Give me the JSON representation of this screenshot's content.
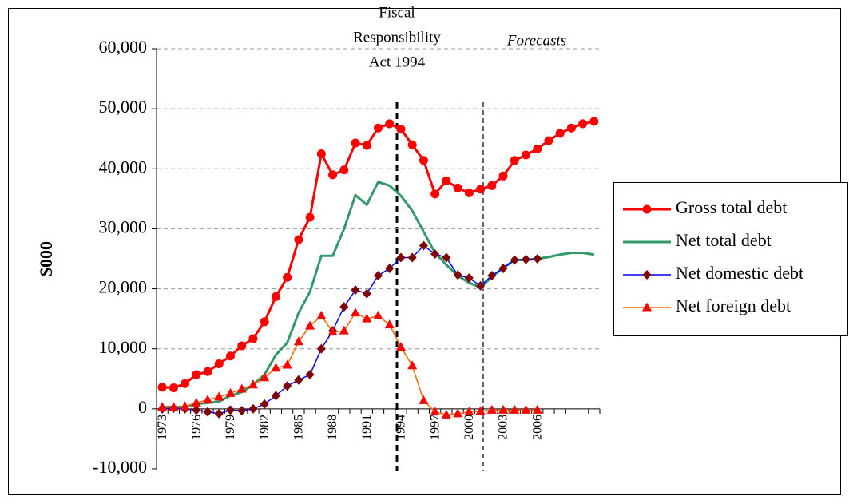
{
  "chart_data": {
    "type": "line",
    "ylabel": "$000",
    "annotations": [
      {
        "lines": [
          "Fiscal",
          "Responsibility",
          "Act 1994"
        ]
      },
      {
        "lines": [
          "Forecasts"
        ],
        "italic": true
      }
    ],
    "categories": [
      "1973",
      null,
      null,
      "1976",
      null,
      null,
      "1979",
      null,
      null,
      "1982",
      null,
      null,
      "1985",
      null,
      null,
      "1988",
      null,
      null,
      "1991",
      null,
      null,
      "1994",
      null,
      null,
      "1997",
      null,
      null,
      "2000",
      null,
      null,
      "2003",
      null,
      null,
      "2006",
      null,
      null,
      null,
      null,
      null
    ],
    "series": [
      {
        "name": "Gross total debt",
        "color": "#ff0000",
        "marker": "circle",
        "marker_color": "#ff0000",
        "width": 3,
        "values": [
          3600,
          3500,
          4200,
          5700,
          6200,
          7500,
          8800,
          10500,
          11700,
          14500,
          18700,
          21900,
          28200,
          31900,
          42500,
          39000,
          39800,
          44300,
          43900,
          46800,
          47500,
          46600,
          44000,
          41400,
          35800,
          38000,
          36800,
          36000,
          36600,
          37200,
          38800,
          41400,
          42300,
          43300,
          44700,
          45900,
          46800,
          47500,
          47900
        ]
      },
      {
        "name": "Net total debt",
        "color": "#339966",
        "marker": "none",
        "width": 3,
        "values": [
          300,
          300,
          300,
          800,
          1000,
          1200,
          2200,
          2800,
          4000,
          5700,
          9000,
          11000,
          16000,
          19500,
          25500,
          25500,
          30000,
          35600,
          34000,
          37800,
          37200,
          35500,
          33000,
          29500,
          26000,
          24000,
          22200,
          21000,
          20200,
          22000,
          23500,
          24800,
          24800,
          25000,
          25300,
          25700,
          26000,
          26000,
          25700
        ]
      },
      {
        "name": "Net domestic debt",
        "color": "#0000ff",
        "marker": "diamond",
        "marker_color": "#800000",
        "width": 1.5,
        "values": [
          0,
          100,
          0,
          -200,
          -500,
          -800,
          -200,
          -300,
          0,
          800,
          2200,
          3800,
          4800,
          5700,
          10000,
          13000,
          17000,
          19800,
          19200,
          22200,
          23400,
          25200,
          25200,
          27200,
          25800,
          25200,
          22300,
          21800,
          20500,
          22200,
          23400,
          24800,
          24900,
          25000,
          null,
          null,
          null,
          null,
          null
        ]
      },
      {
        "name": "Net foreign debt",
        "color": "#ff6600",
        "marker": "triangle",
        "marker_color": "#ff0000",
        "width": 1.5,
        "values": [
          300,
          300,
          400,
          1000,
          1500,
          2000,
          2600,
          3300,
          4000,
          5200,
          6800,
          7300,
          11200,
          13800,
          15500,
          12800,
          13000,
          16000,
          15000,
          15500,
          14000,
          10300,
          7200,
          1400,
          -500,
          -1000,
          -800,
          -500,
          -400,
          -200,
          -200,
          -200,
          -200,
          -200,
          null,
          null,
          null,
          null,
          null
        ]
      }
    ],
    "ylim": [
      -10000,
      60000
    ],
    "yticks": [
      {
        "value": -10000,
        "label": "-10,000"
      },
      0,
      {
        "value": 10000,
        "label": "10,000"
      },
      {
        "value": 20000,
        "label": "20,000"
      },
      {
        "value": 30000,
        "label": "30,000"
      },
      {
        "value": 40000,
        "label": "40,000"
      },
      {
        "value": 50000,
        "label": "50,000"
      },
      {
        "value": 60000,
        "label": "60,000"
      }
    ],
    "grid": true,
    "legend": "right"
  }
}
